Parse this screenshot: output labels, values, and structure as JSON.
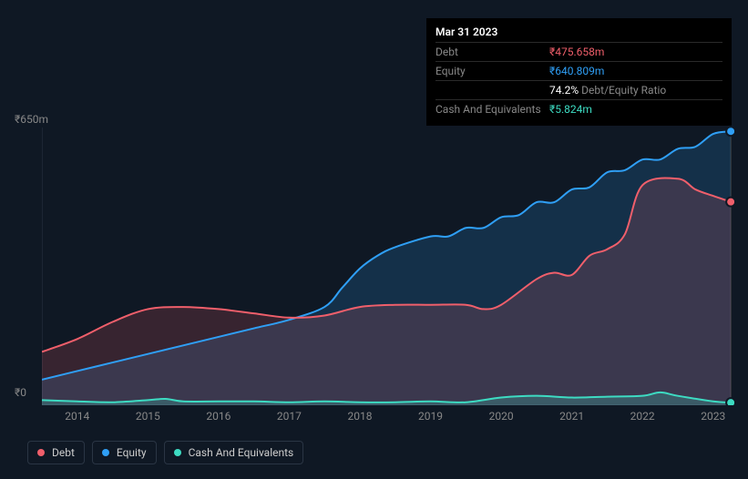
{
  "tooltip": {
    "date": "Mar 31 2023",
    "rows": [
      {
        "label": "Debt",
        "value": "₹475.658m",
        "cls": "debt"
      },
      {
        "label": "Equity",
        "value": "₹640.809m",
        "cls": "equity"
      },
      {
        "label": "",
        "value": "74.2%",
        "sublabel": "Debt/Equity Ratio",
        "cls": ""
      },
      {
        "label": "Cash And Equivalents",
        "value": "₹5.824m",
        "cls": "cash"
      }
    ]
  },
  "chart": {
    "type": "area",
    "background_color": "#0f1824",
    "plot_border_color": "#2a3544",
    "ylim": [
      0,
      650
    ],
    "y_ticks": [
      {
        "v": 650,
        "label": "₹650m",
        "offset_top": 4
      },
      {
        "v": 0,
        "label": "₹0",
        "offset_top": 304
      }
    ],
    "x_start": 2013.5,
    "x_end": 2023.3,
    "x_ticks": [
      2014,
      2015,
      2016,
      2017,
      2018,
      2019,
      2020,
      2021,
      2022,
      2023
    ],
    "vline_x": 2023.25,
    "series": [
      {
        "name": "Debt",
        "color": "#f05f6b",
        "fill": "rgba(240,95,107,0.18)",
        "line_width": 2,
        "points": [
          {
            "x": 2013.5,
            "y": 125
          },
          {
            "x": 2014.0,
            "y": 155
          },
          {
            "x": 2014.5,
            "y": 195
          },
          {
            "x": 2015.0,
            "y": 225
          },
          {
            "x": 2015.5,
            "y": 230
          },
          {
            "x": 2016.0,
            "y": 225
          },
          {
            "x": 2016.5,
            "y": 215
          },
          {
            "x": 2017.0,
            "y": 205
          },
          {
            "x": 2017.5,
            "y": 210
          },
          {
            "x": 2018.0,
            "y": 230
          },
          {
            "x": 2018.5,
            "y": 235
          },
          {
            "x": 2019.0,
            "y": 235
          },
          {
            "x": 2019.5,
            "y": 235
          },
          {
            "x": 2019.75,
            "y": 225
          },
          {
            "x": 2020.0,
            "y": 235
          },
          {
            "x": 2020.5,
            "y": 295
          },
          {
            "x": 2020.75,
            "y": 310
          },
          {
            "x": 2021.0,
            "y": 305
          },
          {
            "x": 2021.25,
            "y": 350
          },
          {
            "x": 2021.5,
            "y": 365
          },
          {
            "x": 2021.75,
            "y": 400
          },
          {
            "x": 2022.0,
            "y": 515
          },
          {
            "x": 2022.5,
            "y": 530
          },
          {
            "x": 2022.75,
            "y": 505
          },
          {
            "x": 2023.0,
            "y": 490
          },
          {
            "x": 2023.25,
            "y": 476
          }
        ],
        "endpoint": {
          "x": 2023.25,
          "y": 476
        }
      },
      {
        "name": "Equity",
        "color": "#2f9ff6",
        "fill": "rgba(47,159,246,0.18)",
        "line_width": 2,
        "points": [
          {
            "x": 2013.5,
            "y": 60
          },
          {
            "x": 2014.0,
            "y": 80
          },
          {
            "x": 2014.5,
            "y": 100
          },
          {
            "x": 2015.0,
            "y": 120
          },
          {
            "x": 2015.5,
            "y": 140
          },
          {
            "x": 2016.0,
            "y": 160
          },
          {
            "x": 2016.5,
            "y": 180
          },
          {
            "x": 2017.0,
            "y": 200
          },
          {
            "x": 2017.5,
            "y": 230
          },
          {
            "x": 2017.75,
            "y": 275
          },
          {
            "x": 2018.0,
            "y": 320
          },
          {
            "x": 2018.25,
            "y": 350
          },
          {
            "x": 2018.5,
            "y": 370
          },
          {
            "x": 2019.0,
            "y": 395
          },
          {
            "x": 2019.25,
            "y": 395
          },
          {
            "x": 2019.5,
            "y": 415
          },
          {
            "x": 2019.75,
            "y": 415
          },
          {
            "x": 2020.0,
            "y": 440
          },
          {
            "x": 2020.25,
            "y": 445
          },
          {
            "x": 2020.5,
            "y": 475
          },
          {
            "x": 2020.75,
            "y": 475
          },
          {
            "x": 2021.0,
            "y": 505
          },
          {
            "x": 2021.25,
            "y": 510
          },
          {
            "x": 2021.5,
            "y": 545
          },
          {
            "x": 2021.75,
            "y": 550
          },
          {
            "x": 2022.0,
            "y": 575
          },
          {
            "x": 2022.25,
            "y": 575
          },
          {
            "x": 2022.5,
            "y": 600
          },
          {
            "x": 2022.75,
            "y": 605
          },
          {
            "x": 2023.0,
            "y": 635
          },
          {
            "x": 2023.25,
            "y": 641
          }
        ],
        "endpoint": {
          "x": 2023.25,
          "y": 641
        }
      },
      {
        "name": "Cash And Equivalents",
        "color": "#3ddbc2",
        "fill": "rgba(61,219,194,0.22)",
        "line_width": 2,
        "points": [
          {
            "x": 2013.5,
            "y": 12
          },
          {
            "x": 2014.0,
            "y": 9
          },
          {
            "x": 2014.5,
            "y": 7
          },
          {
            "x": 2015.0,
            "y": 12
          },
          {
            "x": 2015.25,
            "y": 15
          },
          {
            "x": 2015.5,
            "y": 9
          },
          {
            "x": 2016.0,
            "y": 9
          },
          {
            "x": 2016.5,
            "y": 9
          },
          {
            "x": 2017.0,
            "y": 7
          },
          {
            "x": 2017.5,
            "y": 9
          },
          {
            "x": 2018.0,
            "y": 7
          },
          {
            "x": 2018.5,
            "y": 7
          },
          {
            "x": 2019.0,
            "y": 9
          },
          {
            "x": 2019.5,
            "y": 7
          },
          {
            "x": 2020.0,
            "y": 18
          },
          {
            "x": 2020.5,
            "y": 22
          },
          {
            "x": 2021.0,
            "y": 18
          },
          {
            "x": 2021.5,
            "y": 20
          },
          {
            "x": 2022.0,
            "y": 22
          },
          {
            "x": 2022.25,
            "y": 30
          },
          {
            "x": 2022.5,
            "y": 22
          },
          {
            "x": 2023.0,
            "y": 9
          },
          {
            "x": 2023.25,
            "y": 6
          }
        ],
        "endpoint": {
          "x": 2023.25,
          "y": 6
        }
      }
    ],
    "legend": [
      {
        "label": "Debt",
        "color": "#f05f6b"
      },
      {
        "label": "Equity",
        "color": "#2f9ff6"
      },
      {
        "label": "Cash And Equivalents",
        "color": "#3ddbc2"
      }
    ]
  }
}
